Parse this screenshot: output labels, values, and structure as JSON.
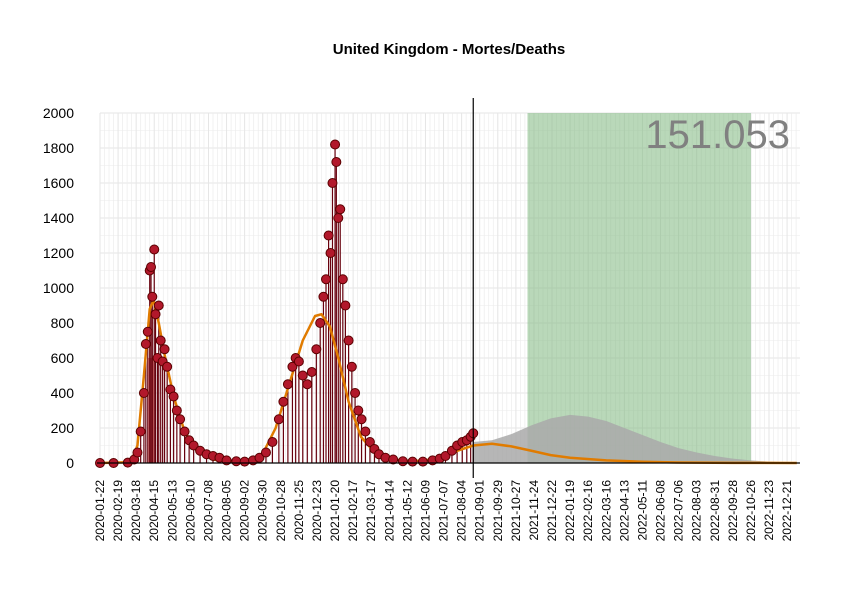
{
  "chart_data": {
    "type": "scatter",
    "title": "United Kingdom - Mortes/Deaths",
    "xlabel": "",
    "ylabel": "",
    "ylim": [
      0,
      2000
    ],
    "xlim": [
      "2020-01-22",
      "2023-01-10"
    ],
    "y_ticks": [
      0,
      200,
      400,
      600,
      800,
      1000,
      1200,
      1400,
      1600,
      1800,
      2000
    ],
    "x_tick_labels": [
      "2020-01-22",
      "2020-02-19",
      "2020-03-18",
      "2020-04-15",
      "2020-05-13",
      "2020-06-10",
      "2020-07-08",
      "2020-08-05",
      "2020-09-02",
      "2020-09-30",
      "2020-10-28",
      "2020-11-25",
      "2020-12-23",
      "2021-01-20",
      "2021-02-17",
      "2021-03-17",
      "2021-04-14",
      "2021-05-12",
      "2021-06-09",
      "2021-07-07",
      "2021-08-04",
      "2021-09-01",
      "2021-09-29",
      "2021-10-27",
      "2021-11-24",
      "2021-12-22",
      "2022-01-19",
      "2022-02-16",
      "2022-03-16",
      "2022-04-13",
      "2022-05-11",
      "2022-06-08",
      "2022-07-06",
      "2022-08-03",
      "2022-08-31",
      "2022-09-28",
      "2022-10-26",
      "2022-11-23",
      "2022-12-21"
    ],
    "grid": true,
    "last_observed_date": "2021-08-22",
    "total_label": "151.053",
    "colors": {
      "observed_points": "#b2182b",
      "observed_stem": "#67000d",
      "smooth_line": "#e07b00",
      "forecast_area": "#a9a9a9",
      "highlight_band": "#7fb87f",
      "grid": "#e6e6e6",
      "first_wave_bar": "#d9534f"
    },
    "highlight_band": {
      "start": "2021-11-14",
      "end": "2022-10-26"
    },
    "first_wave_bar": {
      "start": "2020-04-06",
      "end": "2020-04-15",
      "value": 0
    },
    "observed_series": [
      {
        "date": "2020-01-22",
        "value": 0
      },
      {
        "date": "2020-02-12",
        "value": 0
      },
      {
        "date": "2020-03-05",
        "value": 2
      },
      {
        "date": "2020-03-15",
        "value": 20
      },
      {
        "date": "2020-03-20",
        "value": 60
      },
      {
        "date": "2020-03-25",
        "value": 180
      },
      {
        "date": "2020-03-30",
        "value": 400
      },
      {
        "date": "2020-04-02",
        "value": 680
      },
      {
        "date": "2020-04-05",
        "value": 750
      },
      {
        "date": "2020-04-08",
        "value": 1100
      },
      {
        "date": "2020-04-10",
        "value": 1120
      },
      {
        "date": "2020-04-12",
        "value": 950
      },
      {
        "date": "2020-04-15",
        "value": 1220
      },
      {
        "date": "2020-04-17",
        "value": 850
      },
      {
        "date": "2020-04-20",
        "value": 600
      },
      {
        "date": "2020-04-22",
        "value": 900
      },
      {
        "date": "2020-04-25",
        "value": 700
      },
      {
        "date": "2020-04-28",
        "value": 580
      },
      {
        "date": "2020-05-01",
        "value": 650
      },
      {
        "date": "2020-05-05",
        "value": 550
      },
      {
        "date": "2020-05-10",
        "value": 420
      },
      {
        "date": "2020-05-15",
        "value": 380
      },
      {
        "date": "2020-05-20",
        "value": 300
      },
      {
        "date": "2020-05-25",
        "value": 250
      },
      {
        "date": "2020-06-01",
        "value": 180
      },
      {
        "date": "2020-06-08",
        "value": 130
      },
      {
        "date": "2020-06-15",
        "value": 100
      },
      {
        "date": "2020-06-25",
        "value": 70
      },
      {
        "date": "2020-07-05",
        "value": 50
      },
      {
        "date": "2020-07-15",
        "value": 40
      },
      {
        "date": "2020-07-25",
        "value": 30
      },
      {
        "date": "2020-08-05",
        "value": 15
      },
      {
        "date": "2020-08-20",
        "value": 10
      },
      {
        "date": "2020-09-02",
        "value": 8
      },
      {
        "date": "2020-09-15",
        "value": 15
      },
      {
        "date": "2020-09-25",
        "value": 30
      },
      {
        "date": "2020-10-05",
        "value": 60
      },
      {
        "date": "2020-10-15",
        "value": 120
      },
      {
        "date": "2020-10-25",
        "value": 250
      },
      {
        "date": "2020-11-01",
        "value": 350
      },
      {
        "date": "2020-11-08",
        "value": 450
      },
      {
        "date": "2020-11-15",
        "value": 550
      },
      {
        "date": "2020-11-20",
        "value": 600
      },
      {
        "date": "2020-11-25",
        "value": 580
      },
      {
        "date": "2020-12-01",
        "value": 500
      },
      {
        "date": "2020-12-08",
        "value": 450
      },
      {
        "date": "2020-12-15",
        "value": 520
      },
      {
        "date": "2020-12-22",
        "value": 650
      },
      {
        "date": "2020-12-28",
        "value": 800
      },
      {
        "date": "2021-01-02",
        "value": 950
      },
      {
        "date": "2021-01-06",
        "value": 1050
      },
      {
        "date": "2021-01-10",
        "value": 1300
      },
      {
        "date": "2021-01-13",
        "value": 1200
      },
      {
        "date": "2021-01-16",
        "value": 1600
      },
      {
        "date": "2021-01-20",
        "value": 1820
      },
      {
        "date": "2021-01-22",
        "value": 1720
      },
      {
        "date": "2021-01-25",
        "value": 1400
      },
      {
        "date": "2021-01-28",
        "value": 1450
      },
      {
        "date": "2021-02-01",
        "value": 1050
      },
      {
        "date": "2021-02-05",
        "value": 900
      },
      {
        "date": "2021-02-10",
        "value": 700
      },
      {
        "date": "2021-02-15",
        "value": 550
      },
      {
        "date": "2021-02-20",
        "value": 400
      },
      {
        "date": "2021-02-25",
        "value": 300
      },
      {
        "date": "2021-03-02",
        "value": 250
      },
      {
        "date": "2021-03-08",
        "value": 180
      },
      {
        "date": "2021-03-15",
        "value": 120
      },
      {
        "date": "2021-03-22",
        "value": 80
      },
      {
        "date": "2021-03-29",
        "value": 50
      },
      {
        "date": "2021-04-08",
        "value": 30
      },
      {
        "date": "2021-04-20",
        "value": 20
      },
      {
        "date": "2021-05-05",
        "value": 10
      },
      {
        "date": "2021-05-20",
        "value": 8
      },
      {
        "date": "2021-06-05",
        "value": 8
      },
      {
        "date": "2021-06-20",
        "value": 15
      },
      {
        "date": "2021-07-01",
        "value": 25
      },
      {
        "date": "2021-07-10",
        "value": 40
      },
      {
        "date": "2021-07-20",
        "value": 70
      },
      {
        "date": "2021-07-28",
        "value": 100
      },
      {
        "date": "2021-08-05",
        "value": 120
      },
      {
        "date": "2021-08-12",
        "value": 130
      },
      {
        "date": "2021-08-18",
        "value": 150
      },
      {
        "date": "2021-08-22",
        "value": 170
      }
    ],
    "smooth_series": [
      {
        "date": "2020-01-22",
        "value": 0
      },
      {
        "date": "2020-03-10",
        "value": 5
      },
      {
        "date": "2020-03-20",
        "value": 100
      },
      {
        "date": "2020-03-30",
        "value": 500
      },
      {
        "date": "2020-04-08",
        "value": 880
      },
      {
        "date": "2020-04-14",
        "value": 930
      },
      {
        "date": "2020-04-22",
        "value": 800
      },
      {
        "date": "2020-05-01",
        "value": 620
      },
      {
        "date": "2020-05-15",
        "value": 380
      },
      {
        "date": "2020-06-01",
        "value": 180
      },
      {
        "date": "2020-06-20",
        "value": 70
      },
      {
        "date": "2020-07-15",
        "value": 20
      },
      {
        "date": "2020-08-15",
        "value": 5
      },
      {
        "date": "2020-09-10",
        "value": 10
      },
      {
        "date": "2020-10-01",
        "value": 60
      },
      {
        "date": "2020-10-20",
        "value": 200
      },
      {
        "date": "2020-11-10",
        "value": 450
      },
      {
        "date": "2020-12-01",
        "value": 700
      },
      {
        "date": "2020-12-20",
        "value": 840
      },
      {
        "date": "2020-12-30",
        "value": 850
      },
      {
        "date": "2021-01-12",
        "value": 780
      },
      {
        "date": "2021-01-25",
        "value": 600
      },
      {
        "date": "2021-02-10",
        "value": 350
      },
      {
        "date": "2021-03-01",
        "value": 150
      },
      {
        "date": "2021-03-25",
        "value": 50
      },
      {
        "date": "2021-04-20",
        "value": 20
      },
      {
        "date": "2021-05-20",
        "value": 10
      },
      {
        "date": "2021-06-20",
        "value": 20
      },
      {
        "date": "2021-07-20",
        "value": 60
      },
      {
        "date": "2021-08-22",
        "value": 100
      },
      {
        "date": "2021-09-20",
        "value": 110
      },
      {
        "date": "2021-10-20",
        "value": 95
      },
      {
        "date": "2021-11-20",
        "value": 70
      },
      {
        "date": "2021-12-20",
        "value": 45
      },
      {
        "date": "2022-01-19",
        "value": 30
      },
      {
        "date": "2022-03-16",
        "value": 15
      },
      {
        "date": "2022-05-11",
        "value": 7
      },
      {
        "date": "2022-07-06",
        "value": 3
      },
      {
        "date": "2022-09-28",
        "value": 1
      },
      {
        "date": "2023-01-05",
        "value": 0
      }
    ],
    "forecast_series": [
      {
        "date": "2021-08-22",
        "value": 120
      },
      {
        "date": "2021-09-20",
        "value": 130
      },
      {
        "date": "2021-10-20",
        "value": 165
      },
      {
        "date": "2021-11-20",
        "value": 215
      },
      {
        "date": "2021-12-20",
        "value": 255
      },
      {
        "date": "2022-01-19",
        "value": 275
      },
      {
        "date": "2022-02-16",
        "value": 265
      },
      {
        "date": "2022-03-16",
        "value": 240
      },
      {
        "date": "2022-04-13",
        "value": 200
      },
      {
        "date": "2022-05-11",
        "value": 160
      },
      {
        "date": "2022-06-08",
        "value": 120
      },
      {
        "date": "2022-07-06",
        "value": 85
      },
      {
        "date": "2022-08-03",
        "value": 60
      },
      {
        "date": "2022-08-31",
        "value": 40
      },
      {
        "date": "2022-09-28",
        "value": 25
      },
      {
        "date": "2022-10-26",
        "value": 15
      },
      {
        "date": "2022-11-23",
        "value": 8
      },
      {
        "date": "2022-12-21",
        "value": 4
      },
      {
        "date": "2023-01-05",
        "value": 2
      }
    ]
  }
}
